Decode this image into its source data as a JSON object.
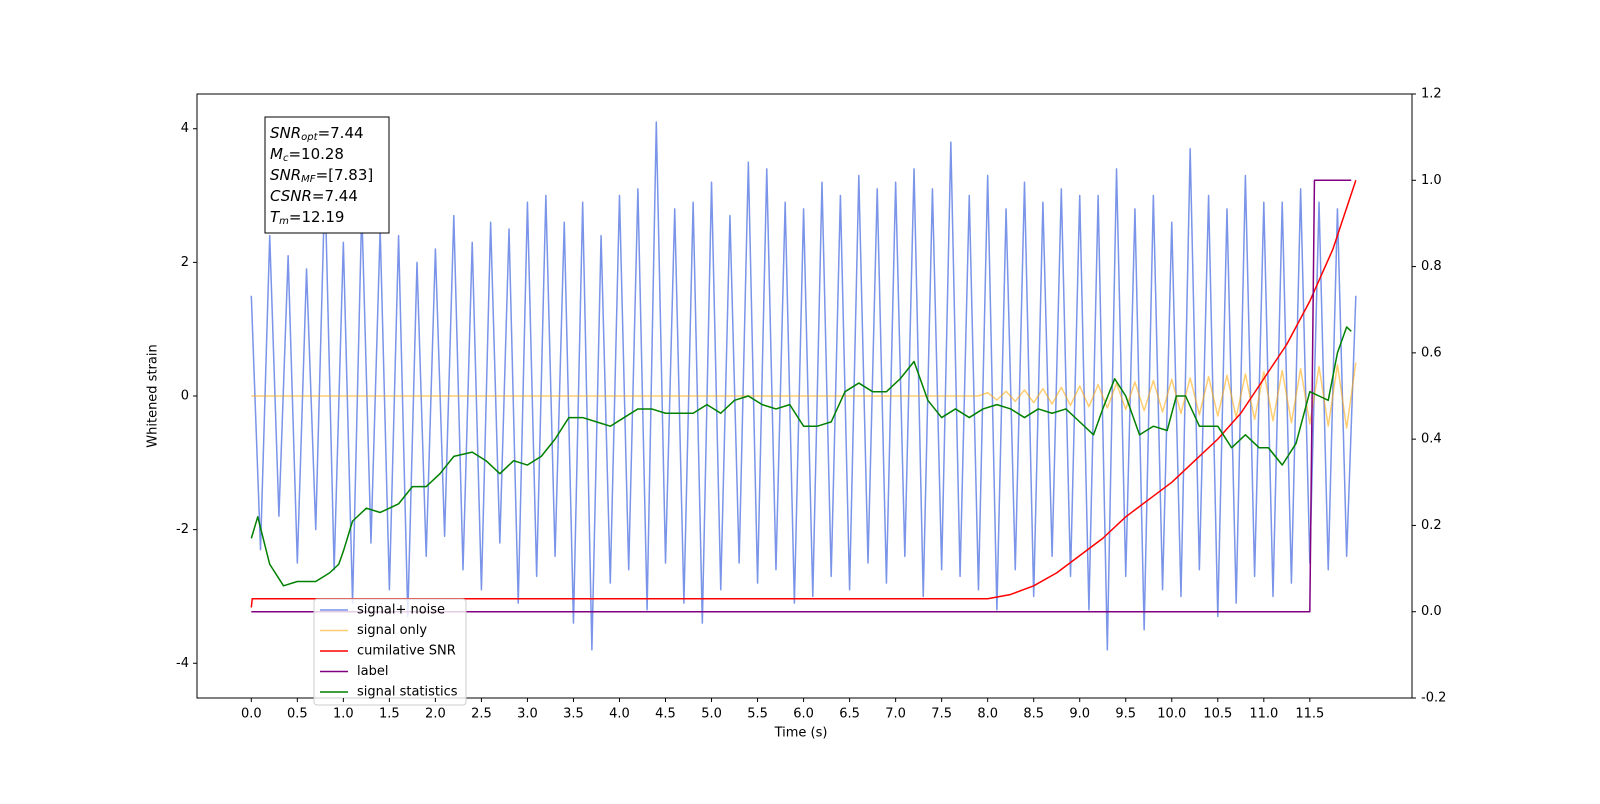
{
  "chart_data": {
    "type": "line",
    "xlabel": "Time (s)",
    "ylabel": "Whitened strain",
    "xlim": [
      -0.59,
      12.61
    ],
    "ylim": [
      -4.52,
      4.52
    ],
    "y2lim": [
      -0.2,
      1.2
    ],
    "xticks": [
      {
        "value": 0,
        "label": "0.0"
      },
      0.5,
      {
        "value": 1,
        "label": "1.0"
      },
      1.5,
      {
        "value": 2,
        "label": "2.0"
      },
      2.5,
      {
        "value": 3,
        "label": "3.0"
      },
      3.5,
      {
        "value": 4,
        "label": "4.0"
      },
      4.5,
      {
        "value": 5,
        "label": "5.0"
      },
      5.5,
      {
        "value": 6,
        "label": "6.0"
      },
      6.5,
      {
        "value": 7,
        "label": "7.0"
      },
      7.5,
      {
        "value": 8,
        "label": "8.0"
      },
      8.5,
      {
        "value": 9,
        "label": "9.0"
      },
      9.5,
      {
        "value": 10,
        "label": "10.0"
      },
      10.5,
      {
        "value": 11,
        "label": "11.0"
      },
      11.5
    ],
    "yticks": [
      -4,
      -2,
      0,
      2,
      4
    ],
    "y2ticks": [
      -0.2,
      {
        "value": 0,
        "label": "0.0"
      },
      0.2,
      0.4,
      0.6,
      0.8,
      {
        "value": 1,
        "label": "1.0"
      },
      1.2
    ],
    "legend": "lower left",
    "stats_box": [
      {
        "symbol": "SNR",
        "subscript": "opt",
        "text": "=7.44"
      },
      {
        "symbol": "M",
        "subscript": "c",
        "text": "=10.28"
      },
      {
        "symbol": "SNR",
        "subscript": "MF",
        "text": "=[7.83]"
      },
      {
        "symbol": "CSNR",
        "subscript": null,
        "text": "=7.44"
      },
      {
        "symbol": "T",
        "subscript": "m",
        "text": "=12.19"
      }
    ],
    "series": [
      {
        "name": "signal+ noise",
        "color": "#6a88e6",
        "opacity": 0.9,
        "x": [
          0,
          0.1,
          0.2,
          0.3,
          0.4,
          0.5,
          0.6,
          0.7,
          0.8,
          0.9,
          1,
          1.1,
          1.2,
          1.3,
          1.4,
          1.5,
          1.6,
          1.7,
          1.8,
          1.9,
          2,
          2.1,
          2.2,
          2.3,
          2.4,
          2.5,
          2.6,
          2.7,
          2.8,
          2.9,
          3,
          3.1,
          3.2,
          3.3,
          3.4,
          3.5,
          3.6,
          3.7,
          3.8,
          3.9,
          4,
          4.1,
          4.2,
          4.3,
          4.4,
          4.5,
          4.6,
          4.7,
          4.8,
          4.9,
          5,
          5.1,
          5.2,
          5.3,
          5.4,
          5.5,
          5.6,
          5.7,
          5.8,
          5.9,
          6,
          6.1,
          6.2,
          6.3,
          6.4,
          6.5,
          6.6,
          6.7,
          6.8,
          6.9,
          7,
          7.1,
          7.2,
          7.3,
          7.4,
          7.5,
          7.6,
          7.7,
          7.8,
          7.9,
          8,
          8.1,
          8.2,
          8.3,
          8.4,
          8.5,
          8.6,
          8.7,
          8.8,
          8.9,
          9,
          9.1,
          9.2,
          9.3,
          9.4,
          9.5,
          9.6,
          9.7,
          9.8,
          9.9,
          10,
          10.1,
          10.2,
          10.3,
          10.4,
          10.5,
          10.6,
          10.7,
          10.8,
          10.9,
          11,
          11.1,
          11.2,
          11.3,
          11.4,
          11.5,
          11.6,
          11.7,
          11.8,
          11.9,
          12
        ],
        "values": [
          1.5,
          -2.3,
          2.4,
          -1.8,
          2.1,
          -2.5,
          1.9,
          -2.0,
          3.2,
          -2.6,
          2.3,
          -3.1,
          2.8,
          -2.2,
          2.5,
          -2.9,
          2.4,
          -3.3,
          2.0,
          -2.4,
          2.2,
          -2.1,
          2.7,
          -2.6,
          2.3,
          -2.9,
          2.6,
          -2.2,
          2.5,
          -3.1,
          2.9,
          -2.7,
          3.0,
          -2.4,
          2.6,
          -3.4,
          2.9,
          -3.8,
          2.4,
          -2.8,
          3.0,
          -2.6,
          3.1,
          -3.2,
          4.1,
          -2.5,
          2.8,
          -3.1,
          2.9,
          -3.4,
          3.2,
          -2.9,
          2.7,
          -2.5,
          3.5,
          -2.8,
          3.4,
          -2.6,
          2.9,
          -3.1,
          2.8,
          -3.0,
          3.2,
          -2.7,
          3.0,
          -2.9,
          3.3,
          -2.5,
          3.1,
          -2.8,
          3.2,
          -2.4,
          3.4,
          -3.0,
          3.1,
          -2.6,
          3.8,
          -2.7,
          3.0,
          -2.9,
          3.3,
          -3.2,
          2.8,
          -2.6,
          3.2,
          -3.0,
          2.9,
          -2.4,
          3.1,
          -2.7,
          3.0,
          -3.2,
          3.0,
          -3.8,
          3.4,
          -2.7,
          2.8,
          -3.5,
          3.0,
          -2.9,
          2.6,
          -3.0,
          3.7,
          -2.6,
          3.0,
          -3.3,
          2.8,
          -3.1,
          3.3,
          -2.7,
          2.9,
          -3.0,
          2.9,
          -2.8,
          3.1,
          -2.5,
          2.9,
          -2.6,
          2.8,
          -2.4,
          1.5
        ]
      },
      {
        "name": "signal only",
        "color": "#ffa500",
        "opacity": 0.55,
        "x": [
          0,
          0.1,
          0.2,
          0.3,
          0.4,
          0.5,
          0.6,
          0.7,
          0.8,
          0.9,
          1,
          1.1,
          1.2,
          1.3,
          1.4,
          1.5,
          1.6,
          1.7,
          1.8,
          1.9,
          2,
          2.1,
          2.2,
          2.3,
          2.4,
          2.5,
          2.6,
          2.7,
          2.8,
          2.9,
          3,
          3.1,
          3.2,
          3.3,
          3.4,
          3.5,
          3.6,
          3.7,
          3.8,
          3.9,
          4,
          4.1,
          4.2,
          4.3,
          4.4,
          4.5,
          4.6,
          4.7,
          4.8,
          4.9,
          5,
          5.1,
          5.2,
          5.3,
          5.4,
          5.5,
          5.6,
          5.7,
          5.8,
          5.9,
          6,
          6.1,
          6.2,
          6.3,
          6.4,
          6.5,
          6.6,
          6.7,
          6.8,
          6.9,
          7,
          7.1,
          7.2,
          7.3,
          7.4,
          7.5,
          7.6,
          7.7,
          7.8,
          7.9,
          8,
          8.1,
          8.2,
          8.3,
          8.4,
          8.5,
          8.6,
          8.7,
          8.8,
          8.9,
          9,
          9.1,
          9.2,
          9.3,
          9.4,
          9.5,
          9.6,
          9.7,
          9.8,
          9.9,
          10,
          10.1,
          10.2,
          10.3,
          10.4,
          10.5,
          10.6,
          10.7,
          10.8,
          10.9,
          11,
          11.1,
          11.2,
          11.3,
          11.4,
          11.5,
          11.6,
          11.7,
          11.8,
          11.9,
          12
        ],
        "values": [
          0,
          0,
          0,
          0,
          0,
          0,
          0,
          0,
          0,
          0,
          0,
          0,
          0,
          0,
          0,
          0,
          0,
          0,
          0,
          0,
          0,
          0,
          0,
          0,
          0,
          0,
          0,
          0,
          0,
          0,
          0,
          0,
          0,
          0,
          0,
          0,
          0,
          0,
          0,
          0,
          0,
          0,
          0,
          0,
          0,
          0,
          0,
          0,
          0,
          0,
          0,
          0,
          0,
          0,
          0,
          0,
          0,
          0,
          0,
          0,
          0,
          0,
          0,
          0,
          0,
          0,
          0,
          0,
          0,
          0,
          0,
          0,
          0,
          0,
          0,
          0,
          0,
          0,
          0,
          0,
          0.05,
          -0.06,
          0.07,
          -0.08,
          0.09,
          -0.1,
          0.11,
          -0.12,
          0.13,
          -0.14,
          0.15,
          -0.16,
          0.17,
          -0.18,
          0.19,
          -0.2,
          0.21,
          -0.22,
          0.23,
          -0.24,
          0.25,
          -0.26,
          0.27,
          -0.28,
          0.29,
          -0.3,
          0.31,
          -0.32,
          0.33,
          -0.35,
          0.36,
          -0.37,
          0.38,
          -0.4,
          0.41,
          -0.42,
          0.44,
          -0.45,
          0.47,
          -0.48,
          0.5
        ]
      },
      {
        "name": "cumilative SNR",
        "color": "#ff0000",
        "axis": "y2",
        "x": [
          0,
          0.01,
          8.0,
          8.25,
          8.5,
          8.75,
          9.0,
          9.25,
          9.5,
          9.75,
          10.0,
          10.25,
          10.5,
          10.75,
          11.0,
          11.25,
          11.5,
          11.75,
          12.0
        ],
        "values": [
          0.01,
          0.03,
          0.03,
          0.04,
          0.06,
          0.09,
          0.13,
          0.17,
          0.22,
          0.26,
          0.3,
          0.35,
          0.4,
          0.46,
          0.54,
          0.62,
          0.72,
          0.84,
          1.0
        ]
      },
      {
        "name": "label",
        "color": "#800080",
        "axis": "y2",
        "x": [
          0,
          11.5,
          11.55,
          11.95
        ],
        "values": [
          0,
          0,
          1,
          1
        ]
      },
      {
        "name": "signal statistics",
        "color": "#008000",
        "axis": "y2",
        "x": [
          0,
          0.07,
          0.2,
          0.35,
          0.5,
          0.7,
          0.85,
          0.95,
          1.0,
          1.1,
          1.25,
          1.4,
          1.5,
          1.6,
          1.75,
          1.9,
          2.05,
          2.2,
          2.4,
          2.55,
          2.7,
          2.85,
          3.0,
          3.15,
          3.3,
          3.45,
          3.6,
          3.75,
          3.9,
          4.05,
          4.2,
          4.35,
          4.5,
          4.65,
          4.8,
          4.95,
          5.1,
          5.25,
          5.4,
          5.55,
          5.7,
          5.85,
          6.0,
          6.15,
          6.3,
          6.45,
          6.6,
          6.75,
          6.9,
          7.05,
          7.2,
          7.35,
          7.5,
          7.65,
          7.8,
          7.95,
          8.1,
          8.25,
          8.4,
          8.55,
          8.7,
          8.85,
          9.0,
          9.15,
          9.25,
          9.38,
          9.5,
          9.65,
          9.8,
          9.95,
          10.05,
          10.15,
          10.3,
          10.5,
          10.65,
          10.8,
          10.95,
          11.05,
          11.2,
          11.35,
          11.5,
          11.6,
          11.7,
          11.8,
          11.9,
          11.95
        ],
        "values": [
          0.17,
          0.22,
          0.11,
          0.06,
          0.07,
          0.07,
          0.09,
          0.11,
          0.14,
          0.21,
          0.24,
          0.23,
          0.24,
          0.25,
          0.29,
          0.29,
          0.32,
          0.36,
          0.37,
          0.35,
          0.32,
          0.35,
          0.34,
          0.36,
          0.4,
          0.45,
          0.45,
          0.44,
          0.43,
          0.45,
          0.47,
          0.47,
          0.46,
          0.46,
          0.46,
          0.48,
          0.46,
          0.49,
          0.5,
          0.48,
          0.47,
          0.48,
          0.43,
          0.43,
          0.44,
          0.51,
          0.53,
          0.51,
          0.51,
          0.54,
          0.58,
          0.49,
          0.45,
          0.47,
          0.45,
          0.47,
          0.48,
          0.47,
          0.45,
          0.47,
          0.46,
          0.47,
          0.44,
          0.41,
          0.47,
          0.54,
          0.5,
          0.41,
          0.43,
          0.42,
          0.5,
          0.5,
          0.43,
          0.43,
          0.38,
          0.41,
          0.38,
          0.38,
          0.34,
          0.39,
          0.51,
          0.5,
          0.49,
          0.6,
          0.66,
          0.65
        ]
      }
    ]
  }
}
